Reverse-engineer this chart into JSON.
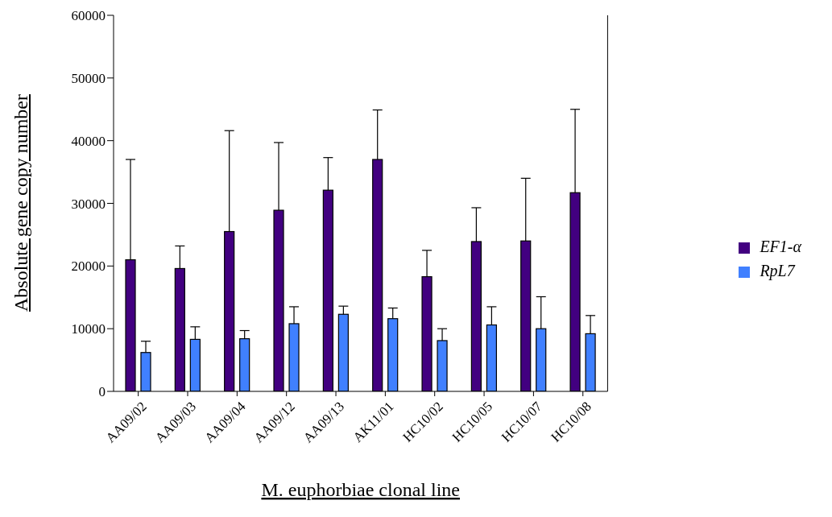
{
  "chart_data": {
    "type": "bar",
    "xlabel": "M. euphorbiae clonal line",
    "ylabel": "Absolute gene copy number",
    "categories": [
      "AA09/02",
      "AA09/03",
      "AA09/04",
      "AA09/12",
      "AA09/13",
      "AK11/01",
      "HC10/02",
      "HC10/05",
      "HC10/07",
      "HC10/08"
    ],
    "series": [
      {
        "name": "EF1-α",
        "color": "#420080",
        "values": [
          21000,
          19600,
          25500,
          28900,
          32100,
          37000,
          18300,
          23900,
          24000,
          31700
        ],
        "errors": [
          [
            21000,
            37000
          ],
          [
            19600,
            23200
          ],
          [
            25500,
            41600
          ],
          [
            28900,
            39700
          ],
          [
            32100,
            37300
          ],
          [
            37000,
            44900
          ],
          [
            18300,
            22500
          ],
          [
            23900,
            29300
          ],
          [
            24000,
            34000
          ],
          [
            31700,
            45000
          ]
        ]
      },
      {
        "name": "RpL7",
        "color": "#4080ff",
        "values": [
          6200,
          8300,
          8400,
          10800,
          12300,
          11600,
          8100,
          10600,
          10000,
          9200
        ],
        "errors": [
          [
            6200,
            8000
          ],
          [
            8300,
            10300
          ],
          [
            8400,
            9700
          ],
          [
            10800,
            13500
          ],
          [
            12300,
            13600
          ],
          [
            11600,
            13300
          ],
          [
            8100,
            10000
          ],
          [
            10600,
            13500
          ],
          [
            10000,
            15100
          ],
          [
            9200,
            12100
          ]
        ]
      }
    ],
    "ylim": [
      0,
      60000
    ],
    "yticks": [
      0,
      10000,
      20000,
      30000,
      40000,
      50000,
      60000
    ],
    "grid": false,
    "legend": "right"
  }
}
